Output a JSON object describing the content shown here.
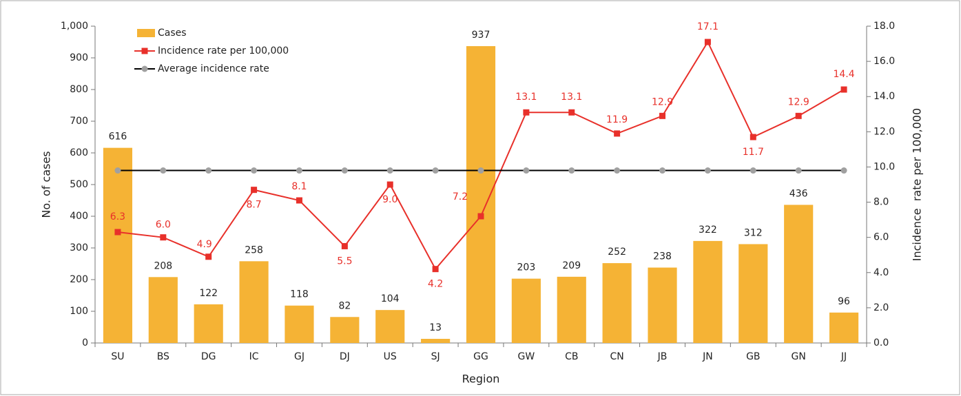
{
  "chart_data": {
    "type": "bar",
    "x_label": "Region",
    "y_label": "No. of cases",
    "y2_label": "Incidence  rate per 100,000",
    "categories": [
      "SU",
      "BS",
      "DG",
      "IC",
      "GJ",
      "DJ",
      "US",
      "SJ",
      "GG",
      "GW",
      "CB",
      "CN",
      "JB",
      "JN",
      "GB",
      "GN",
      "JJ"
    ],
    "series": [
      {
        "name": "Cases",
        "type": "bar",
        "color": "#f5b335",
        "values": [
          616,
          208,
          122,
          258,
          118,
          82,
          104,
          13,
          937,
          203,
          209,
          252,
          238,
          322,
          312,
          436,
          96
        ]
      },
      {
        "name": "Incidence rate per 100,000",
        "type": "line",
        "axis": "y2",
        "color": "#e8302a",
        "marker": "square",
        "values": [
          6.3,
          6.0,
          4.9,
          8.7,
          8.1,
          5.5,
          9.0,
          4.2,
          7.2,
          13.1,
          13.1,
          11.9,
          12.9,
          17.1,
          11.7,
          12.9,
          14.4
        ],
        "value_labels": [
          "6.3",
          "6.0",
          "4.9",
          "8.7",
          "8.1",
          "5.5",
          "9.0",
          "4.2",
          "7.2",
          "13.1",
          "13.1",
          "11.9",
          "12.9",
          "17.1",
          "11.7",
          "12.9",
          "14.4"
        ]
      },
      {
        "name": "Average incidence rate",
        "type": "line",
        "axis": "y2",
        "color": "#000000",
        "marker": "circle",
        "marker_color": "#a0a0a0",
        "values": [
          9.8,
          9.8,
          9.8,
          9.8,
          9.8,
          9.8,
          9.8,
          9.8,
          9.8,
          9.8,
          9.8,
          9.8,
          9.8,
          9.8,
          9.8,
          9.8,
          9.8
        ]
      }
    ],
    "ylim": [
      0,
      1000
    ],
    "yticks": [
      0,
      100,
      200,
      300,
      400,
      500,
      600,
      700,
      800,
      900,
      {
        "value": 1000,
        "label": "1,000"
      }
    ],
    "y2lim": [
      0,
      18
    ],
    "y2ticks": [
      {
        "value": 0,
        "label": "0.0"
      },
      {
        "value": 2,
        "label": "2.0"
      },
      {
        "value": 4,
        "label": "4.0"
      },
      {
        "value": 6,
        "label": "6.0"
      },
      {
        "value": 8,
        "label": "8.0"
      },
      {
        "value": 10,
        "label": "10.0"
      },
      {
        "value": 12,
        "label": "12.0"
      },
      {
        "value": 14,
        "label": "14.0"
      },
      {
        "value": 16,
        "label": "16.0"
      },
      {
        "value": 18,
        "label": "18.0"
      }
    ],
    "legend": "top-left",
    "grid": false
  }
}
